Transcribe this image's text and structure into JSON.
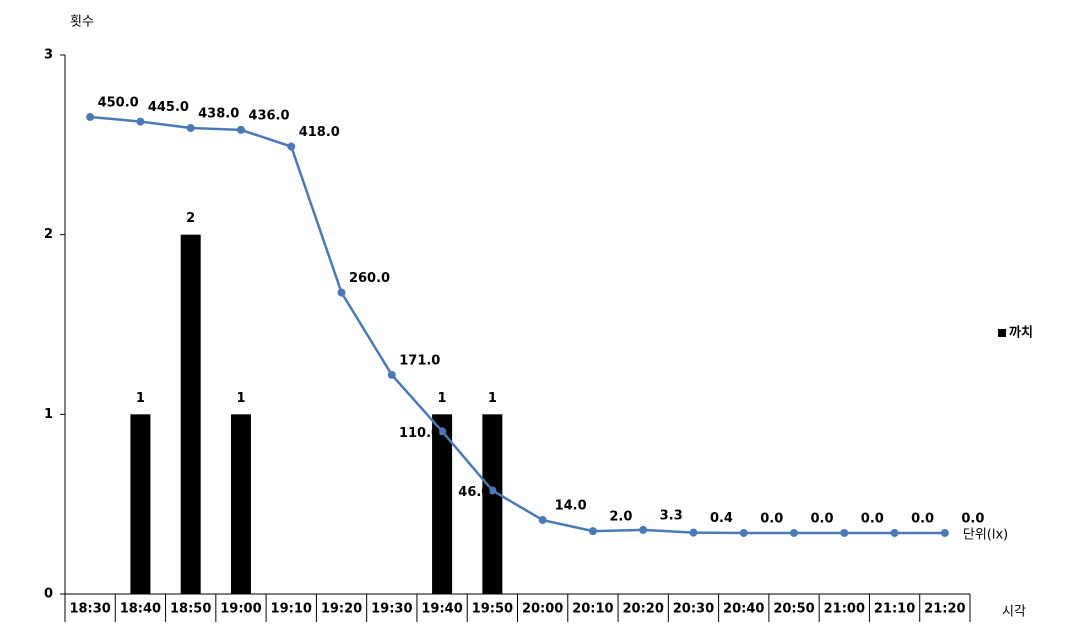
{
  "chart_data": {
    "type": "bar",
    "y_label": "횟수",
    "x_label": "시각",
    "categories": [
      "18:30",
      "18:40",
      "18:50",
      "19:00",
      "19:10",
      "19:20",
      "19:30",
      "19:40",
      "19:50",
      "20:00",
      "20:10",
      "20:20",
      "20:30",
      "20:40",
      "20:50",
      "21:00",
      "21:10",
      "21:20"
    ],
    "ylim": [
      0,
      3
    ],
    "yticks": [
      0,
      1,
      2,
      3
    ],
    "y2lim": [
      -66,
      517
    ],
    "legend": "right",
    "series": [
      {
        "name": "까치",
        "type": "bar",
        "color": "#000000",
        "values": [
          null,
          1,
          2,
          1,
          null,
          null,
          null,
          1,
          1,
          null,
          null,
          null,
          null,
          null,
          null,
          null,
          null,
          null
        ]
      },
      {
        "name": "단위(lx)",
        "type": "line",
        "axis": "y2",
        "color": "#4a7ab5",
        "values": [
          450,
          445,
          438,
          436,
          418,
          260,
          171,
          110,
          46,
          14,
          2,
          3.3,
          0.4,
          0,
          0,
          0,
          0,
          0
        ],
        "value_labels": [
          "450.0",
          "445.0",
          "438.0",
          "436.0",
          "418.0",
          "260.0",
          "171.0",
          "110.0",
          "46.0",
          "14.0",
          "2.0",
          "3.3",
          "0.4",
          "0.0",
          "0.0",
          "0.0",
          "0.0",
          "0.0"
        ]
      }
    ]
  }
}
